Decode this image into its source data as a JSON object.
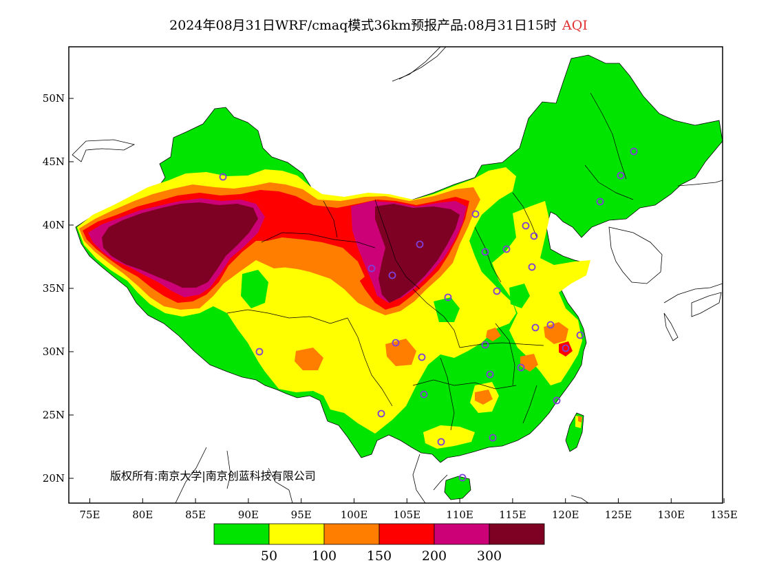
{
  "title": {
    "main": "2024年08月31日WRF/cmaq模式36km预报产品:08月31日15时",
    "variable": "AQI",
    "variable_color": "#e03030"
  },
  "axes": {
    "x_ticks": [
      "75E",
      "80E",
      "85E",
      "90E",
      "95E",
      "100E",
      "105E",
      "110E",
      "115E",
      "120E",
      "125E",
      "130E",
      "135E"
    ],
    "y_ticks": [
      "50N",
      "45N",
      "40N",
      "35N",
      "30N",
      "25N",
      "20N"
    ]
  },
  "copyright": "版权所有:南京大学|南京创蓝科技有限公司",
  "legend": {
    "colors": [
      "#00e400",
      "#ffff00",
      "#ff7e00",
      "#ff0000",
      "#cc0077",
      "#7e0023"
    ],
    "labels": [
      "50",
      "100",
      "150",
      "200",
      "300"
    ]
  },
  "colors": {
    "ocean": "#ffffff",
    "border": "#000000",
    "city_marker": "#7f3fd6"
  }
}
